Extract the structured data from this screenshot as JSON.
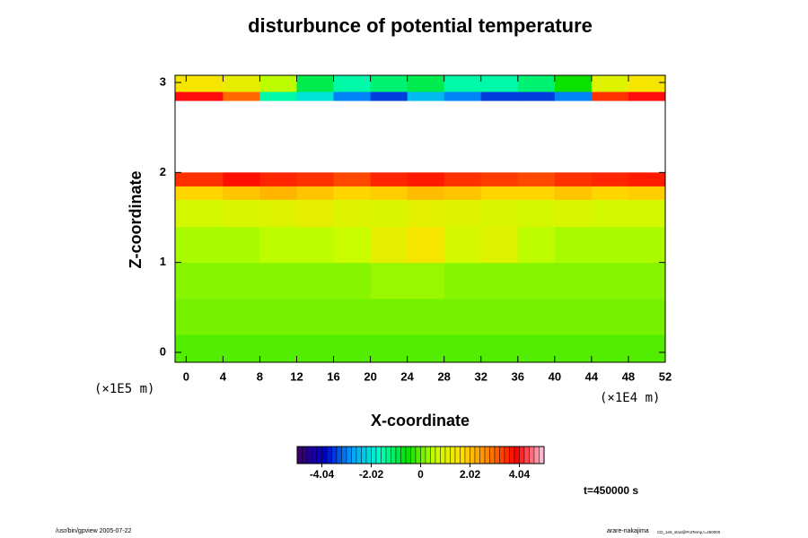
{
  "chart_data": {
    "type": "heatmap",
    "title": "disturbunce of potential temperature",
    "x_label": "X-coordinate",
    "y_label": "Z-coordinate",
    "x_unit": "(×1E4 m)",
    "y_unit": "(×1E5 m)",
    "time_label": "t=450000 s",
    "footer_left": "/usr/bin/gpview 2005-07-22",
    "footer_right": "arare-nakajima",
    "footer_right_small": "CD_1e5_strat@PotTemp,t=450000",
    "xlim": [
      -1.2,
      52
    ],
    "ylim": [
      -0.11,
      3.08
    ],
    "xticks": [
      0,
      4,
      8,
      12,
      16,
      20,
      24,
      28,
      32,
      36,
      40,
      44,
      48,
      52
    ],
    "yticks": [
      0,
      1,
      2,
      3
    ],
    "x_edges": [
      -1.2,
      4,
      8,
      12,
      16,
      20,
      24,
      28,
      32,
      36,
      40,
      44,
      48,
      52
    ],
    "y_edges": [
      -0.11,
      0.2,
      0.6,
      1.0,
      1.4,
      1.7,
      1.85,
      2.0,
      2.8,
      2.9,
      3.08
    ],
    "values": [
      [
        -0.1,
        -0.1,
        -0.1,
        -0.1,
        -0.1,
        -0.1,
        -0.1,
        -0.1,
        -0.1,
        -0.1,
        -0.1,
        -0.1,
        -0.1
      ],
      [
        0.1,
        0.1,
        0.1,
        0.1,
        0.1,
        0.1,
        0.1,
        0.1,
        0.1,
        0.1,
        0.1,
        0.1,
        0.1
      ],
      [
        0.2,
        0.2,
        0.2,
        0.2,
        0.2,
        0.3,
        0.3,
        0.2,
        0.2,
        0.2,
        0.2,
        0.2,
        0.2
      ],
      [
        0.4,
        0.4,
        0.5,
        0.5,
        0.6,
        1.2,
        1.5,
        0.8,
        1.0,
        0.5,
        0.4,
        0.4,
        0.4
      ],
      [
        0.8,
        0.9,
        1.0,
        1.2,
        1.0,
        0.9,
        1.1,
        1.0,
        0.9,
        0.8,
        0.9,
        0.8,
        0.8
      ],
      [
        1.8,
        2.0,
        2.2,
        2.0,
        1.8,
        1.9,
        2.1,
        2.0,
        1.8,
        1.8,
        2.0,
        1.8,
        1.9
      ],
      [
        3.5,
        3.8,
        3.6,
        3.5,
        3.3,
        3.6,
        3.7,
        3.5,
        3.4,
        3.3,
        3.5,
        3.6,
        3.7
      ],
      [
        null,
        null,
        null,
        null,
        null,
        null,
        null,
        null,
        null,
        null,
        null,
        null,
        null
      ],
      [
        4.0,
        3.0,
        -1.5,
        -2.0,
        -3.0,
        -3.5,
        -2.5,
        -3.0,
        -3.5,
        -3.5,
        -3.0,
        3.5,
        4.0
      ],
      [
        1.5,
        1.2,
        0.5,
        -1.0,
        -1.5,
        -1.2,
        -1.0,
        -1.5,
        -1.5,
        -1.2,
        -0.5,
        1.0,
        1.5
      ]
    ],
    "clim": [
      -5.05,
      5.05
    ],
    "cticks": [
      -4.04,
      -2.02,
      0,
      2.02,
      4.04
    ],
    "colormap": [
      "#3c0064",
      "#0000c8",
      "#00a0ff",
      "#00ffc8",
      "#00e000",
      "#c8ff00",
      "#ffe000",
      "#ff8000",
      "#ff0000",
      "#ffc8e0"
    ]
  }
}
